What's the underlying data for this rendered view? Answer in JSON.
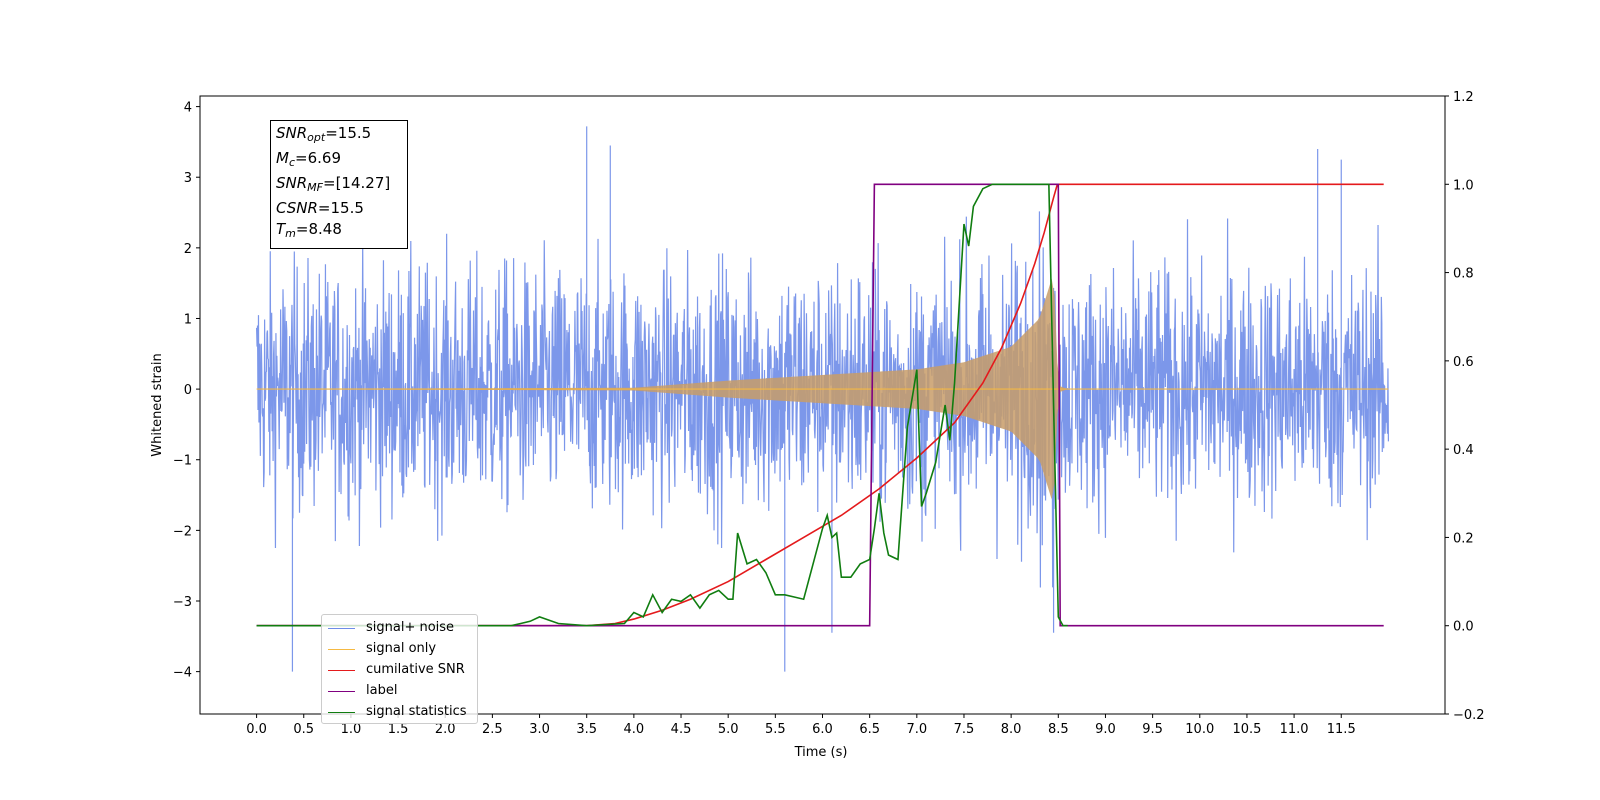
{
  "chart_data": {
    "type": "line",
    "xlabel": "Time (s)",
    "ylabel_left": "Whitened strain",
    "ylabel_right": "",
    "xlim": [
      -0.6,
      12.6
    ],
    "ylim_left": [
      -4.6,
      4.15
    ],
    "ylim_right": [
      -0.2,
      1.2
    ],
    "x_ticks": [
      "0.0",
      "0.5",
      "1.0",
      "1.5",
      "2.0",
      "2.5",
      "3.0",
      "3.5",
      "4.0",
      "4.5",
      "5.0",
      "5.5",
      "6.0",
      "6.5",
      "7.0",
      "7.5",
      "8.0",
      "8.5",
      "9.0",
      "9.5",
      "10.0",
      "10.5",
      "11.0",
      "11.5"
    ],
    "y_ticks_left": [
      4,
      3,
      2,
      1,
      0,
      -1,
      -2,
      -3,
      -4
    ],
    "y_ticks_left_labels": [
      "4",
      "3",
      "2",
      "1",
      "0",
      "−1",
      "−2",
      "−3",
      "−4"
    ],
    "y_ticks_right": [
      1.2,
      1.0,
      0.8,
      0.6,
      0.4,
      0.2,
      0.0,
      -0.2
    ],
    "y_ticks_right_labels": [
      "1.2",
      "1.0",
      "0.8",
      "0.6",
      "0.4",
      "0.2",
      "0.0",
      "−0.2"
    ],
    "grid": false,
    "legend_position": "lower-left",
    "series": [
      {
        "name": "signal+ noise",
        "axis": "left",
        "color": "#6e8ce8",
        "description_x_range": [
          0.0,
          12.0
        ],
        "amplitude_approx": 2.4,
        "peaks": [
          [
            0.38,
            -4.0
          ],
          [
            3.5,
            3.72
          ],
          [
            3.75,
            3.45
          ],
          [
            5.6,
            -4.0
          ],
          [
            6.1,
            -3.45
          ],
          [
            11.25,
            3.4
          ],
          [
            11.5,
            3.25
          ],
          [
            8.45,
            -3.45
          ]
        ]
      },
      {
        "name": "signal only",
        "axis": "left",
        "color": "#f5b942",
        "x_range": [
          0.0,
          12.0
        ],
        "merger_time": 8.48,
        "envelope": [
          [
            0.0,
            0.0
          ],
          [
            4.0,
            0.02
          ],
          [
            5.0,
            0.12
          ],
          [
            6.0,
            0.2
          ],
          [
            7.0,
            0.28
          ],
          [
            7.5,
            0.38
          ],
          [
            8.0,
            0.6
          ],
          [
            8.3,
            1.0
          ],
          [
            8.45,
            1.65
          ],
          [
            8.5,
            0.05
          ],
          [
            8.6,
            0.0
          ],
          [
            12.0,
            0.0
          ]
        ]
      },
      {
        "name": "cumilative SNR",
        "axis": "right",
        "color": "#e41a1c",
        "x": [
          0.0,
          3.5,
          3.8,
          4.0,
          4.3,
          4.6,
          5.0,
          5.4,
          5.8,
          6.2,
          6.6,
          7.0,
          7.4,
          7.7,
          7.9,
          8.1,
          8.25,
          8.35,
          8.45,
          8.49,
          8.5,
          11.95
        ],
        "values": [
          0.0,
          0.0,
          0.005,
          0.015,
          0.035,
          0.06,
          0.1,
          0.15,
          0.2,
          0.25,
          0.31,
          0.38,
          0.46,
          0.55,
          0.63,
          0.73,
          0.82,
          0.89,
          0.97,
          1.0,
          1.0,
          1.0
        ]
      },
      {
        "name": "label",
        "axis": "right",
        "color": "#800080",
        "x": [
          0.0,
          6.5,
          6.55,
          8.5,
          8.52,
          11.95
        ],
        "values": [
          0.0,
          0.0,
          1.0,
          1.0,
          0.0,
          0.0
        ]
      },
      {
        "name": "signal only",
        "axis": "right",
        "color": "#6e8ce8",
        "hidden": true
      },
      {
        "name": "signal statistics",
        "axis": "right",
        "color": "#107d10",
        "x": [
          0.0,
          2.7,
          2.8,
          2.9,
          3.0,
          3.2,
          3.5,
          3.9,
          4.0,
          4.1,
          4.2,
          4.3,
          4.4,
          4.5,
          4.6,
          4.7,
          4.8,
          4.9,
          5.0,
          5.05,
          5.1,
          5.2,
          5.3,
          5.4,
          5.5,
          5.6,
          5.7,
          5.8,
          5.9,
          6.0,
          6.05,
          6.1,
          6.15,
          6.2,
          6.3,
          6.4,
          6.5,
          6.55,
          6.6,
          6.65,
          6.7,
          6.8,
          6.9,
          7.0,
          7.05,
          7.1,
          7.2,
          7.3,
          7.35,
          7.4,
          7.5,
          7.55,
          7.6,
          7.7,
          7.8,
          7.9,
          8.0,
          8.1,
          8.4,
          8.45,
          8.5,
          8.55,
          8.6
        ],
        "values": [
          0.0,
          0.0,
          0.005,
          0.01,
          0.02,
          0.005,
          0.0,
          0.005,
          0.03,
          0.02,
          0.07,
          0.03,
          0.06,
          0.055,
          0.07,
          0.04,
          0.07,
          0.08,
          0.06,
          0.06,
          0.21,
          0.14,
          0.15,
          0.12,
          0.07,
          0.07,
          0.065,
          0.06,
          0.14,
          0.22,
          0.25,
          0.2,
          0.21,
          0.11,
          0.11,
          0.14,
          0.15,
          0.22,
          0.3,
          0.21,
          0.16,
          0.15,
          0.45,
          0.58,
          0.27,
          0.3,
          0.37,
          0.5,
          0.42,
          0.55,
          0.91,
          0.86,
          0.95,
          0.99,
          1.0,
          1.0,
          1.0,
          1.0,
          1.0,
          0.5,
          0.02,
          0.0,
          0.0
        ]
      }
    ]
  },
  "annotation": {
    "snr_opt": {
      "var": "SNR",
      "sub": "opt",
      "value": "=15.5"
    },
    "mc": {
      "var": "M",
      "sub": "c",
      "value": "=6.69"
    },
    "snr_mf": {
      "var": "SNR",
      "sub": "MF",
      "value": "=[14.27]"
    },
    "csnr": {
      "var": "CSNR",
      "sub": "",
      "value": "=15.5"
    },
    "tm": {
      "var": "T",
      "sub": "m",
      "value": "=8.48"
    }
  },
  "legend": [
    {
      "label": "signal+ noise",
      "color": "#6e8ce8"
    },
    {
      "label": "signal only",
      "color": "#f5b942"
    },
    {
      "label": "cumilative SNR",
      "color": "#e41a1c"
    },
    {
      "label": "label",
      "color": "#800080"
    },
    {
      "label": "signal statistics",
      "color": "#107d10"
    }
  ]
}
